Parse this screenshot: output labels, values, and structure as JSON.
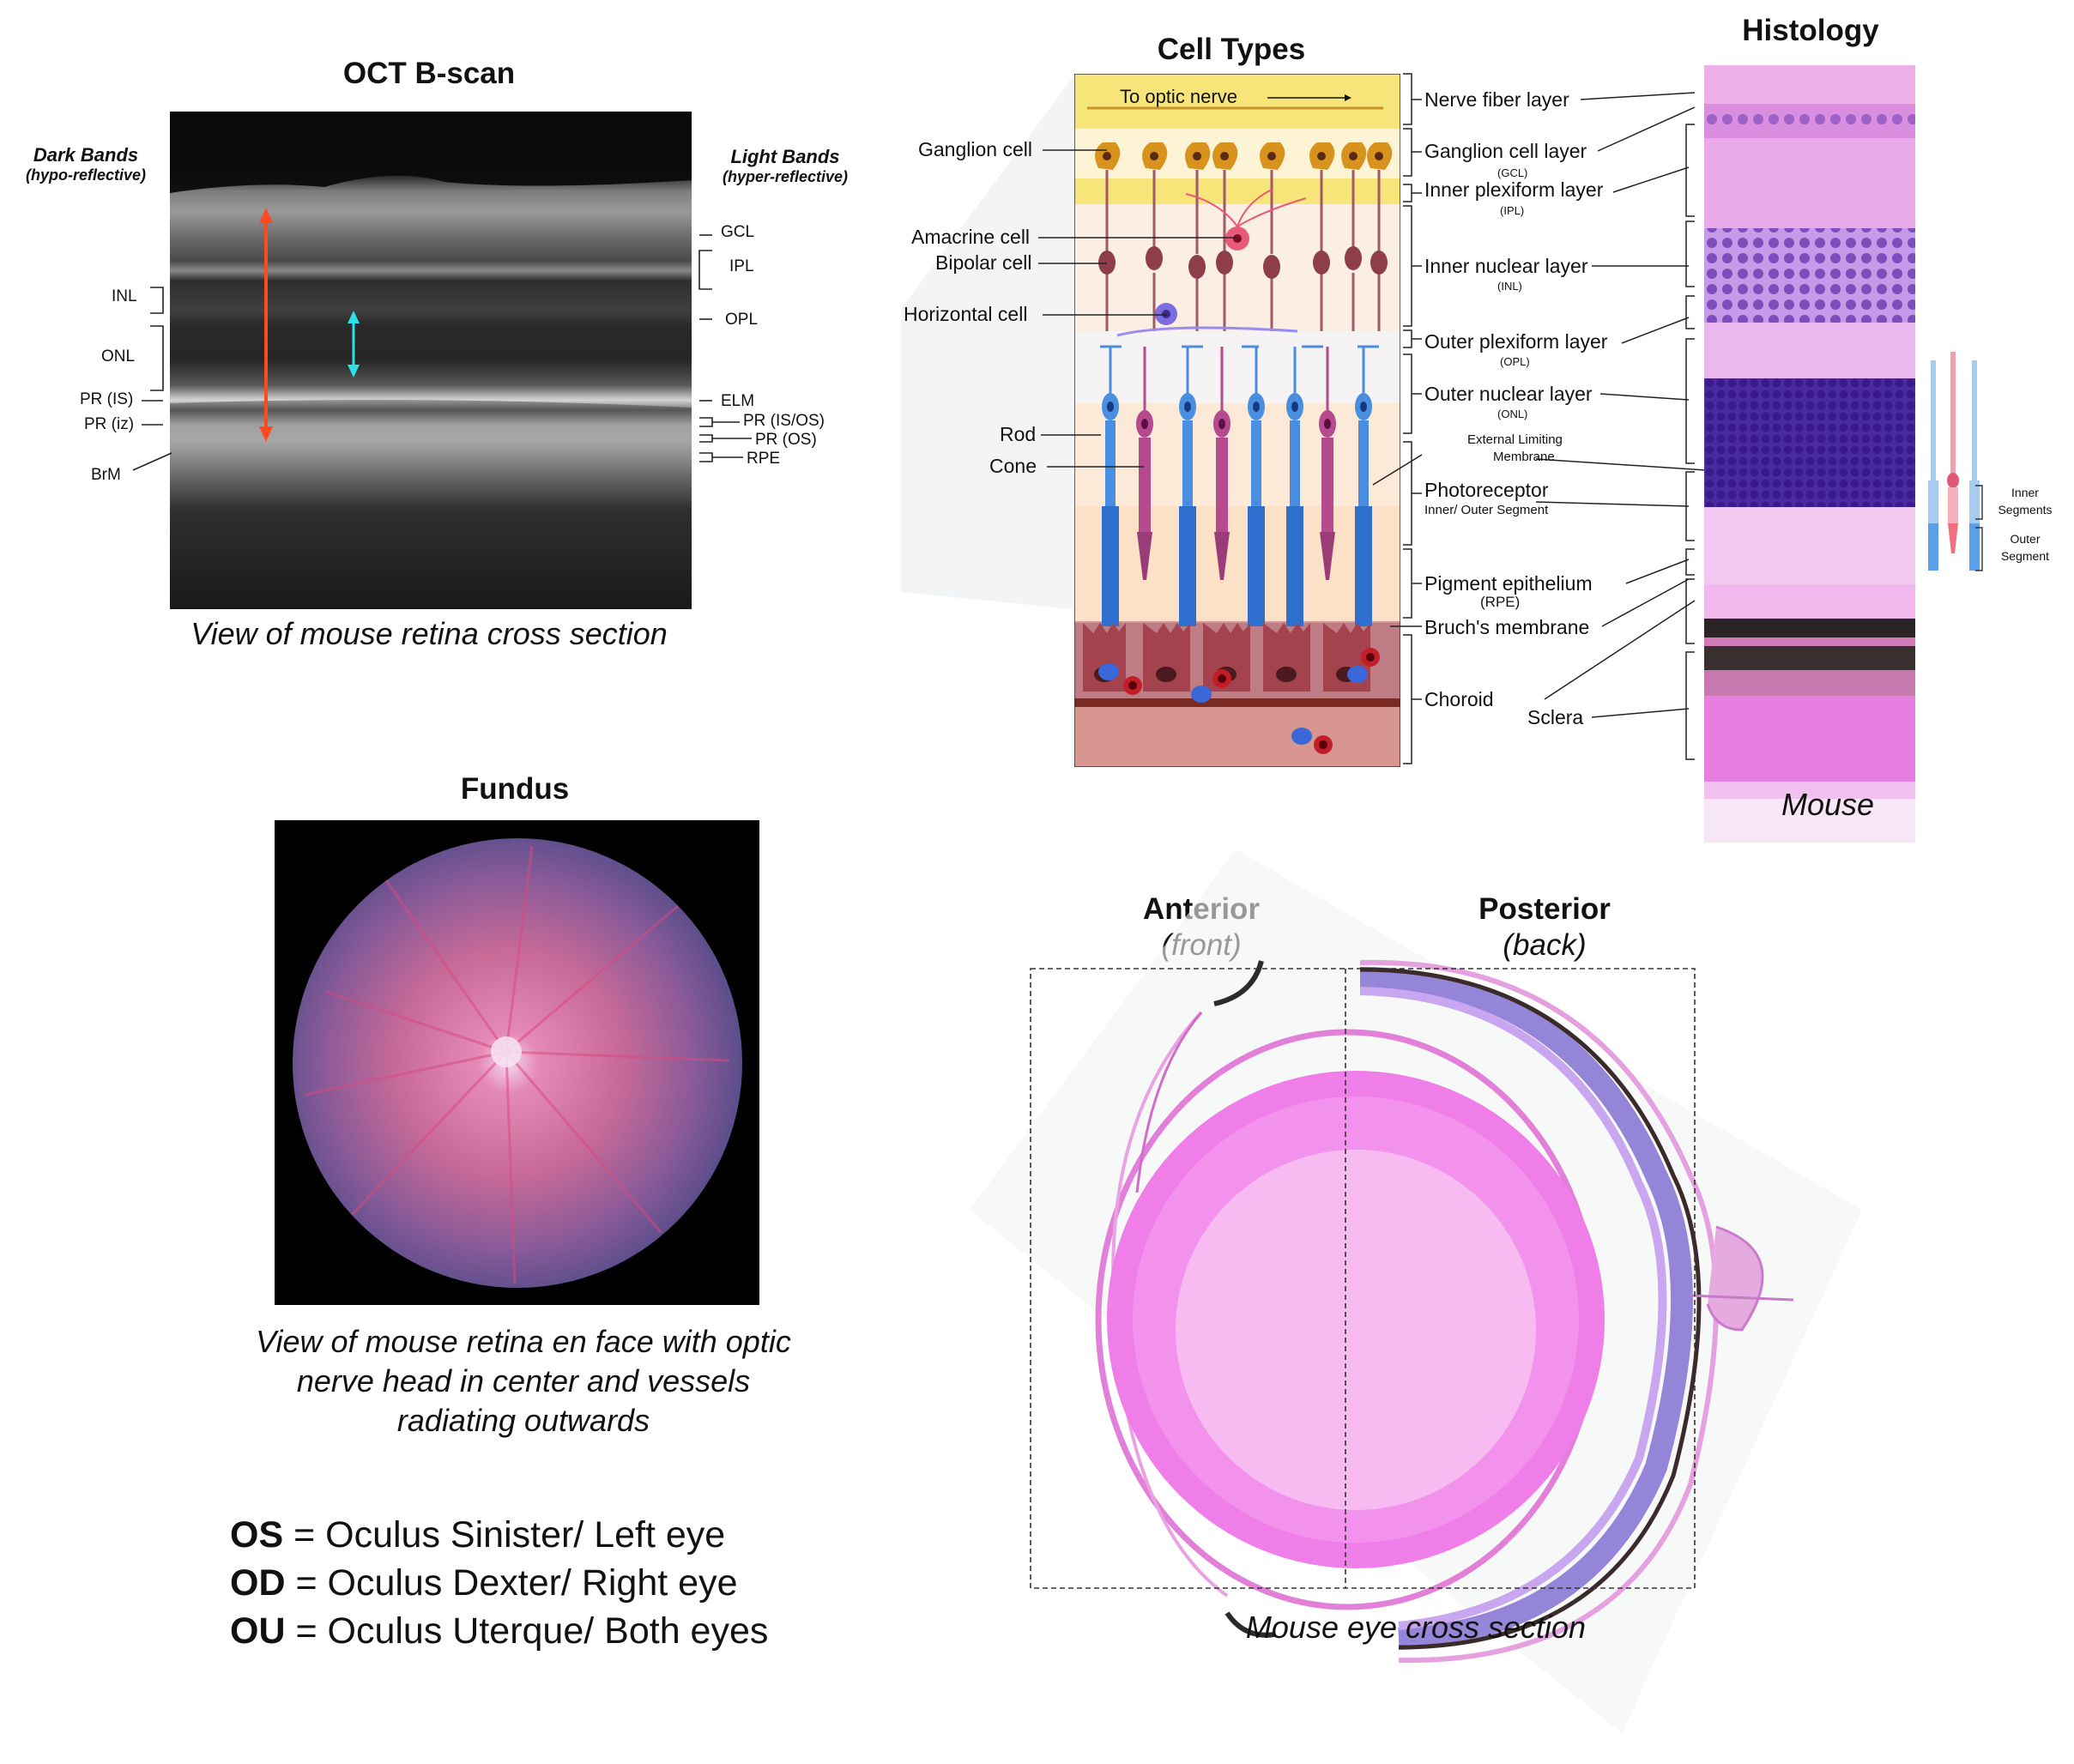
{
  "oct": {
    "title": "OCT B-scan",
    "caption": "View of mouse retina cross section",
    "dark_bands_title": "Dark Bands",
    "dark_bands_sub": "(hypo-reflective)",
    "light_bands_title": "Light Bands",
    "light_bands_sub": "(hyper-reflective)",
    "left_labels": [
      "INL",
      "ONL",
      "PR (IS)",
      "PR (iz)",
      "BrM"
    ],
    "right_labels": [
      "GCL",
      "IPL",
      "OPL",
      "ELM",
      "PR (IS/OS)",
      "PR (OS)",
      "RPE"
    ]
  },
  "cell_types": {
    "title": "Cell Types",
    "optic_nerve": "To optic nerve",
    "cells": [
      "Ganglion cell",
      "Amacrine cell",
      "Bipolar cell",
      "Horizontal cell",
      "Rod",
      "Cone"
    ],
    "layers": [
      {
        "name": "Nerve fiber layer",
        "abbr": ""
      },
      {
        "name": "Ganglion cell layer",
        "abbr": "(GCL)"
      },
      {
        "name": "Inner plexiform layer",
        "abbr": "(IPL)"
      },
      {
        "name": "Inner nuclear layer",
        "abbr": "(INL)"
      },
      {
        "name": "Outer plexiform layer",
        "abbr": "(OPL)"
      },
      {
        "name": "Outer nuclear layer",
        "abbr": "(ONL)"
      },
      {
        "name": "External Limiting",
        "abbr": "Membrane"
      },
      {
        "name": "Photoreceptor",
        "abbr": "Inner/ Outer Segment"
      },
      {
        "name": "Pigment epithelium",
        "abbr": "(RPE)"
      },
      {
        "name": "Bruch's membrane",
        "abbr": ""
      },
      {
        "name": "Choroid",
        "abbr": ""
      },
      {
        "name": "Sclera",
        "abbr": ""
      }
    ]
  },
  "histology": {
    "title": "Histology",
    "caption": "Mouse",
    "segments": [
      "Inner",
      "Segments",
      "Outer",
      "Segment"
    ]
  },
  "fundus": {
    "title": "Fundus",
    "caption_lines": [
      "View of mouse retina en face with optic",
      "nerve head in center and vessels",
      "radiating outwards"
    ]
  },
  "abbreviations": [
    {
      "abbr": "OS",
      "text": " = Oculus Sinister/ Left eye"
    },
    {
      "abbr": "OD",
      "text": " = Oculus Dexter/ Right eye"
    },
    {
      "abbr": "OU",
      "text": " = Oculus Uterque/ Both eyes"
    }
  ],
  "eye": {
    "anterior": "Anterior",
    "anterior_sub": "(front)",
    "posterior": "Posterior",
    "posterior_sub": "(back)",
    "caption": "Mouse eye cross section"
  }
}
